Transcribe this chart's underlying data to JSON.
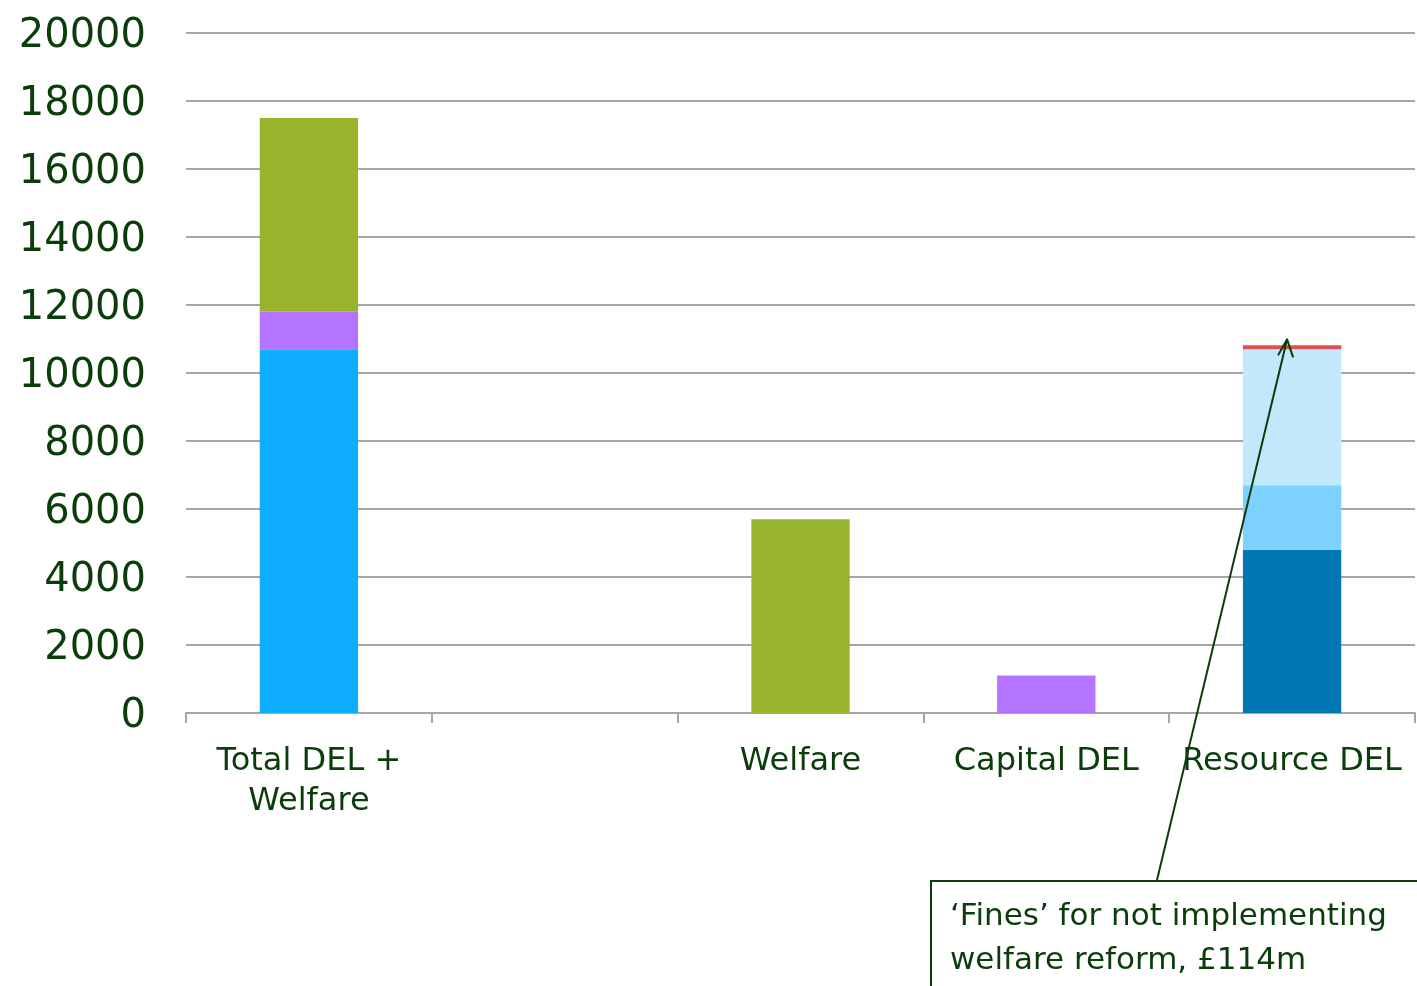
{
  "chart_data": {
    "type": "bar",
    "stacked": true,
    "categories": [
      "Total DEL +\nWelfare",
      null,
      "Welfare",
      "Capital DEL",
      "Resource DEL"
    ],
    "series": [
      {
        "color": "#0fadff",
        "values": [
          10700,
          null,
          null,
          null,
          null
        ]
      },
      {
        "color": "#0077b3",
        "values": [
          null,
          null,
          null,
          null,
          4800
        ]
      },
      {
        "color": "#b574ff",
        "values": [
          1100,
          null,
          null,
          1100,
          null
        ]
      },
      {
        "color": "#98b32e",
        "values": [
          5700,
          null,
          5700,
          null,
          null
        ]
      },
      {
        "color": "#7dd1ff",
        "values": [
          null,
          null,
          null,
          null,
          1900
        ]
      },
      {
        "color": "#c2e8fb",
        "values": [
          null,
          null,
          null,
          null,
          4000
        ]
      },
      {
        "color": "#e05050",
        "values": [
          null,
          null,
          null,
          null,
          114
        ]
      }
    ],
    "ylim": [
      0,
      20000
    ],
    "yticks": [
      0,
      2000,
      4000,
      6000,
      8000,
      10000,
      12000,
      14000,
      16000,
      18000,
      20000
    ],
    "grid": "y",
    "annotations": [
      {
        "text": "‘Fines’ for not implementing welfare reform, £114m",
        "x": "Resource DEL",
        "y": 10814
      }
    ]
  }
}
